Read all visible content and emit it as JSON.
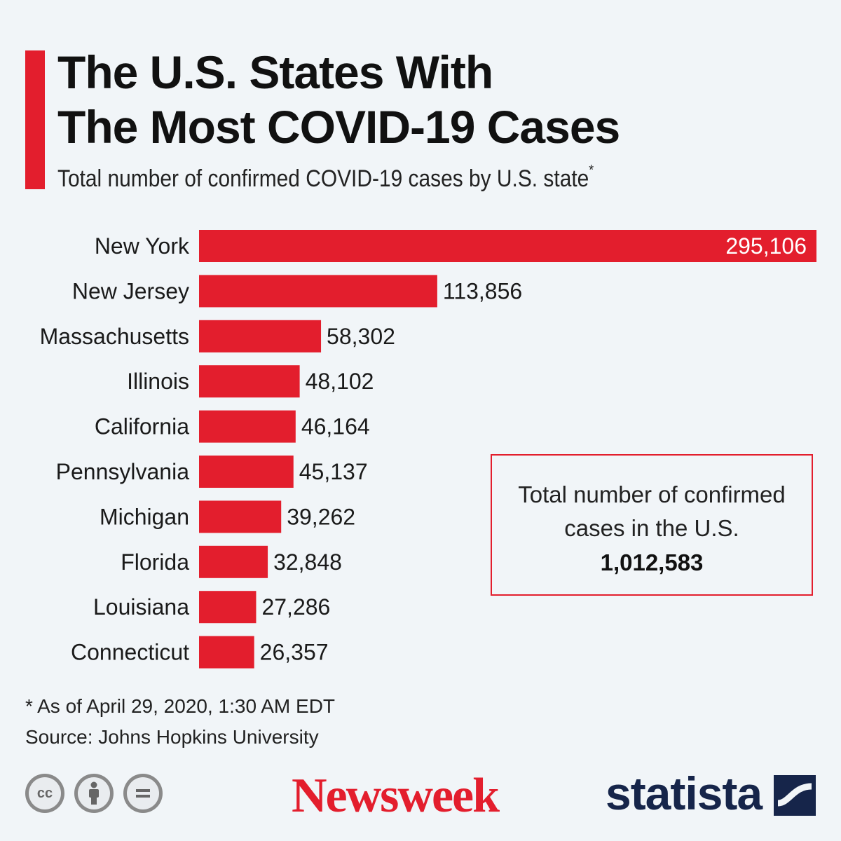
{
  "title_line1": "The U.S. States With",
  "title_line2": "The Most COVID-19 Cases",
  "subtitle": "Total number of confirmed COVID-19 cases by U.S. state",
  "subtitle_marker": "*",
  "chart_data": {
    "type": "bar",
    "orientation": "horizontal",
    "categories": [
      "New York",
      "New Jersey",
      "Massachusetts",
      "Illinois",
      "California",
      "Pennsylvania",
      "Michigan",
      "Florida",
      "Louisiana",
      "Connecticut"
    ],
    "values": [
      295106,
      113856,
      58302,
      48102,
      46164,
      45137,
      39262,
      32848,
      27286,
      26357
    ],
    "value_labels": [
      "295,106",
      "113,856",
      "58,302",
      "48,102",
      "46,164",
      "45,137",
      "39,262",
      "32,848",
      "27,286",
      "26,357"
    ],
    "xlim": [
      0,
      295106
    ],
    "bar_color": "#e31e2d",
    "grid": false,
    "legend": "none"
  },
  "info_box": {
    "text": "Total number of confirmed cases in the U.S.",
    "value": "1,012,583"
  },
  "footnote": "* As of April 29, 2020, 1:30 AM EDT",
  "source": "Source: Johns Hopkins University",
  "logos": {
    "newsweek": "Newsweek",
    "statista": "statista"
  },
  "license_icons": [
    "cc-icon",
    "attribution-icon",
    "no-derivatives-icon"
  ],
  "colors": {
    "accent": "#e31e2d",
    "statista_navy": "#16254a",
    "background": "#f1f5f8"
  }
}
